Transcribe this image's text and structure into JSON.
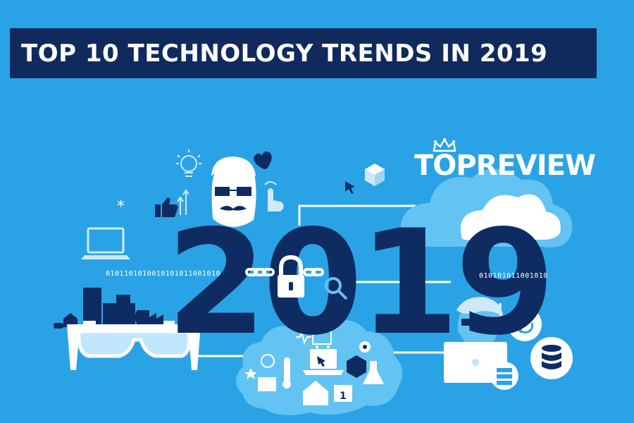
{
  "title": "TOP 10 TECHNOLOGY TRENDS IN 2019",
  "brand": "TOPREVIEW",
  "year": "2019",
  "binary_left": "0101101010010101011001010",
  "binary_right": "010101011001010",
  "colors": {
    "background": "#2aa3e6",
    "title_bar": "#102a5e",
    "dark_navy": "#0f2c62",
    "light_blue": "#63c3f2",
    "white": "#ffffff"
  },
  "icons": [
    "lightbulb-icon",
    "heart-icon",
    "cube-icon",
    "cursor-icon",
    "thumbs-up-icon",
    "hipster-avatar-icon",
    "touch-hand-icon",
    "laptop-icon",
    "padlock-icon",
    "chain-icon",
    "magnifier-icon",
    "city-skyline-icon",
    "vr-glasses-icon",
    "cloud-icon",
    "iot-cloud-icon",
    "developer-avatar-icon",
    "sync-icon",
    "database-icon",
    "server-icon"
  ],
  "calendar_day": "1"
}
